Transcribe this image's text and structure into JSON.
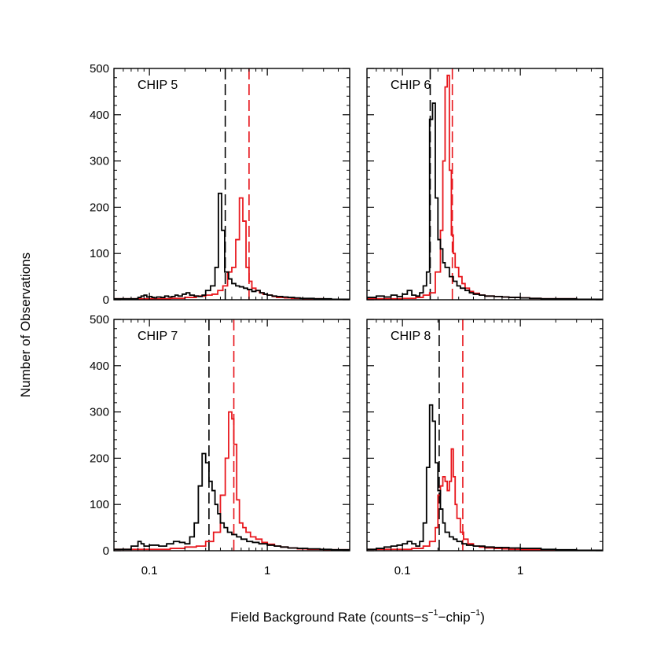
{
  "chart_data": {
    "type": "histogram",
    "xlabel_main": "Field Background Rate (counts−s",
    "xlabel_exp1": "−1",
    "xlabel_mid": "−chip",
    "xlabel_exp2": "−1",
    "xlabel_end": ")",
    "ylabel": "Number of Observations",
    "xscale": "log",
    "xlim": [
      0.05,
      5.0
    ],
    "ylim": [
      0,
      500
    ],
    "x_ticks": [
      {
        "value": 0.1,
        "label": "0.1"
      },
      {
        "value": 1,
        "label": "1"
      }
    ],
    "y_ticks": [
      {
        "value": 0,
        "label": "0"
      },
      {
        "value": 100,
        "label": "100"
      },
      {
        "value": 200,
        "label": "200"
      },
      {
        "value": 300,
        "label": "300"
      },
      {
        "value": 400,
        "label": "400"
      },
      {
        "value": 500,
        "label": "500"
      }
    ],
    "series_colors": {
      "black": "#000000",
      "red": "#e8161c"
    },
    "panels": [
      {
        "label": "CHIP 5",
        "black_median": 0.44,
        "red_median": 0.7,
        "black": {
          "edges": [
            0.05,
            0.08,
            0.085,
            0.09,
            0.095,
            0.1,
            0.105,
            0.11,
            0.115,
            0.125,
            0.135,
            0.145,
            0.155,
            0.165,
            0.175,
            0.19,
            0.205,
            0.22,
            0.24,
            0.26,
            0.28,
            0.3,
            0.33,
            0.36,
            0.385,
            0.41,
            0.435,
            0.47,
            0.5,
            0.54,
            0.58,
            0.63,
            0.68,
            0.74,
            0.8,
            0.87,
            0.94,
            1.0,
            1.1,
            1.2,
            1.35,
            1.5,
            1.7,
            1.9,
            2.2,
            2.5,
            3.0,
            3.5,
            4.0,
            5.0
          ],
          "counts": [
            2,
            5,
            8,
            10,
            6,
            7,
            5,
            4,
            6,
            5,
            8,
            6,
            7,
            10,
            8,
            12,
            15,
            10,
            8,
            7,
            10,
            20,
            30,
            70,
            230,
            150,
            60,
            45,
            35,
            30,
            28,
            25,
            22,
            18,
            20,
            15,
            12,
            10,
            8,
            7,
            6,
            5,
            4,
            3,
            3,
            2,
            2,
            1,
            1
          ]
        },
        "red": {
          "edges": [
            0.05,
            0.15,
            0.2,
            0.25,
            0.3,
            0.34,
            0.38,
            0.42,
            0.46,
            0.5,
            0.54,
            0.58,
            0.62,
            0.66,
            0.7,
            0.74,
            0.8,
            0.86,
            0.92,
            1.0,
            1.1,
            1.2,
            1.4,
            1.6,
            2.0,
            2.5,
            3.0,
            5.0
          ],
          "counts": [
            2,
            3,
            5,
            8,
            10,
            12,
            20,
            30,
            60,
            70,
            130,
            220,
            170,
            70,
            40,
            25,
            20,
            15,
            12,
            10,
            7,
            5,
            4,
            3,
            2,
            2,
            1
          ]
        }
      },
      {
        "label": "CHIP 6",
        "black_median": 0.172,
        "red_median": 0.265,
        "black": {
          "edges": [
            0.05,
            0.06,
            0.07,
            0.08,
            0.09,
            0.1,
            0.11,
            0.12,
            0.13,
            0.14,
            0.15,
            0.16,
            0.17,
            0.18,
            0.19,
            0.2,
            0.21,
            0.22,
            0.23,
            0.25,
            0.27,
            0.29,
            0.31,
            0.34,
            0.37,
            0.4,
            0.45,
            0.5,
            0.6,
            0.7,
            0.8,
            1.0,
            1.2,
            1.5,
            2.0,
            3.0,
            5.0
          ],
          "counts": [
            5,
            8,
            6,
            10,
            7,
            12,
            20,
            10,
            8,
            15,
            30,
            60,
            390,
            425,
            220,
            130,
            110,
            80,
            70,
            50,
            40,
            30,
            25,
            20,
            15,
            12,
            10,
            8,
            7,
            6,
            5,
            4,
            3,
            2,
            2,
            1
          ]
        },
        "red": {
          "edges": [
            0.05,
            0.1,
            0.13,
            0.15,
            0.17,
            0.19,
            0.21,
            0.22,
            0.23,
            0.24,
            0.25,
            0.26,
            0.27,
            0.28,
            0.3,
            0.32,
            0.34,
            0.37,
            0.4,
            0.45,
            0.5,
            0.6,
            0.7,
            0.8,
            1.0,
            1.2,
            1.5,
            2.0,
            3.0,
            5.0
          ],
          "counts": [
            2,
            3,
            5,
            10,
            15,
            60,
            150,
            300,
            460,
            485,
            280,
            140,
            100,
            70,
            50,
            35,
            25,
            18,
            14,
            10,
            8,
            7,
            6,
            5,
            4,
            3,
            2,
            2,
            1
          ]
        }
      },
      {
        "label": "CHIP 7",
        "black_median": 0.32,
        "red_median": 0.52,
        "black": {
          "edges": [
            0.05,
            0.07,
            0.08,
            0.085,
            0.09,
            0.1,
            0.12,
            0.14,
            0.16,
            0.18,
            0.2,
            0.22,
            0.24,
            0.26,
            0.28,
            0.3,
            0.32,
            0.34,
            0.36,
            0.38,
            0.4,
            0.43,
            0.46,
            0.5,
            0.55,
            0.6,
            0.67,
            0.75,
            0.85,
            1.0,
            1.15,
            1.3,
            1.5,
            1.8,
            2.2,
            2.8,
            3.5,
            5.0
          ],
          "counts": [
            3,
            10,
            20,
            15,
            10,
            12,
            10,
            15,
            20,
            18,
            15,
            30,
            60,
            140,
            210,
            190,
            150,
            130,
            100,
            80,
            60,
            50,
            40,
            35,
            30,
            25,
            20,
            18,
            15,
            12,
            10,
            8,
            6,
            5,
            4,
            3,
            2
          ]
        },
        "red": {
          "edges": [
            0.05,
            0.15,
            0.2,
            0.25,
            0.3,
            0.35,
            0.4,
            0.44,
            0.47,
            0.5,
            0.52,
            0.55,
            0.58,
            0.62,
            0.66,
            0.72,
            0.8,
            0.9,
            1.0,
            1.15,
            1.3,
            1.5,
            1.8,
            2.2,
            3.0,
            5.0
          ],
          "counts": [
            3,
            5,
            8,
            10,
            20,
            40,
            120,
            200,
            300,
            285,
            230,
            110,
            60,
            50,
            40,
            30,
            25,
            18,
            14,
            10,
            8,
            6,
            4,
            3,
            2
          ]
        }
      },
      {
        "label": "CHIP 8",
        "black_median": 0.205,
        "red_median": 0.325,
        "black": {
          "edges": [
            0.05,
            0.06,
            0.07,
            0.08,
            0.09,
            0.1,
            0.11,
            0.12,
            0.13,
            0.14,
            0.15,
            0.16,
            0.17,
            0.18,
            0.19,
            0.2,
            0.21,
            0.22,
            0.23,
            0.25,
            0.27,
            0.29,
            0.32,
            0.35,
            0.4,
            0.5,
            0.6,
            0.8,
            1.0,
            1.5,
            2.0,
            3.0,
            5.0
          ],
          "counts": [
            3,
            5,
            8,
            10,
            12,
            15,
            20,
            15,
            10,
            20,
            60,
            180,
            315,
            280,
            190,
            130,
            90,
            60,
            40,
            30,
            25,
            20,
            15,
            12,
            10,
            8,
            7,
            6,
            5,
            3,
            2,
            1
          ]
        },
        "red": {
          "edges": [
            0.05,
            0.12,
            0.15,
            0.17,
            0.19,
            0.2,
            0.21,
            0.22,
            0.23,
            0.24,
            0.25,
            0.26,
            0.27,
            0.28,
            0.29,
            0.31,
            0.33,
            0.36,
            0.4,
            0.45,
            0.5,
            0.6,
            0.7,
            0.8,
            1.0,
            1.3,
            1.7,
            2.5,
            5.0
          ],
          "counts": [
            3,
            5,
            10,
            20,
            50,
            120,
            140,
            160,
            150,
            130,
            150,
            220,
            160,
            100,
            70,
            40,
            25,
            15,
            10,
            8,
            6,
            5,
            4,
            3,
            2,
            2,
            1,
            1
          ]
        }
      }
    ]
  }
}
